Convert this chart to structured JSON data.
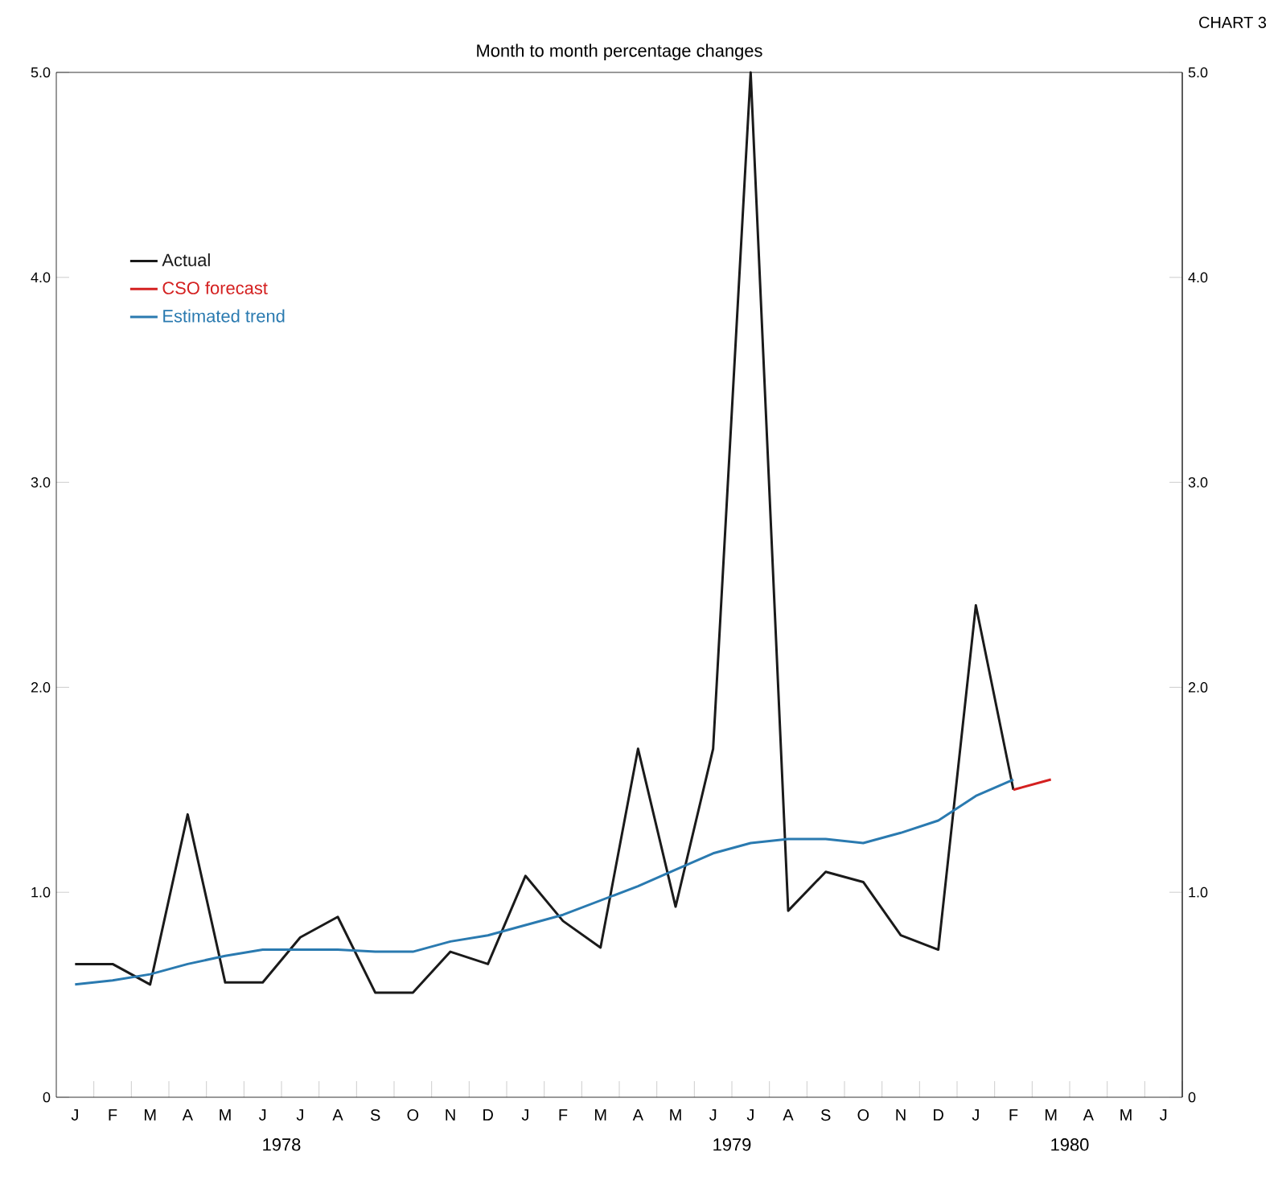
{
  "chart_data": {
    "type": "line",
    "title": "Month to month percentage changes",
    "categories": [
      "J",
      "F",
      "M",
      "A",
      "M",
      "J",
      "J",
      "A",
      "S",
      "O",
      "N",
      "D",
      "J",
      "F",
      "M",
      "A",
      "M",
      "J",
      "J",
      "A",
      "S",
      "O",
      "N",
      "D",
      "J",
      "F",
      "M",
      "A",
      "M",
      "J"
    ],
    "series": [
      {
        "name": "Actual",
        "color": "#1a1a1a",
        "values": [
          0.65,
          0.65,
          0.55,
          1.38,
          0.56,
          0.56,
          0.78,
          0.88,
          0.51,
          0.51,
          0.71,
          0.65,
          1.08,
          0.86,
          0.73,
          1.7,
          0.93,
          1.7,
          5.0,
          0.91,
          1.1,
          1.05,
          0.79,
          0.72,
          2.4,
          1.5,
          null,
          null,
          null,
          null
        ]
      },
      {
        "name": "CSO forecast",
        "color": "#d42020",
        "values": [
          null,
          null,
          null,
          null,
          null,
          null,
          null,
          null,
          null,
          null,
          null,
          null,
          null,
          null,
          null,
          null,
          null,
          null,
          null,
          null,
          null,
          null,
          null,
          null,
          null,
          1.5,
          1.55,
          null,
          null,
          null
        ]
      },
      {
        "name": "Estimated trend",
        "color": "#2a7ab0",
        "values": [
          0.55,
          0.57,
          0.6,
          0.65,
          0.69,
          0.72,
          0.72,
          0.72,
          0.71,
          0.71,
          0.76,
          0.79,
          0.84,
          0.89,
          0.96,
          1.03,
          1.11,
          1.19,
          1.24,
          1.26,
          1.26,
          1.24,
          1.29,
          1.35,
          1.47,
          1.55,
          null,
          null,
          null,
          null
        ]
      }
    ],
    "ylim": [
      0,
      5
    ],
    "yticks": [
      0,
      {
        "value": 1,
        "label": "1.0"
      },
      {
        "value": 2,
        "label": "2.0"
      },
      {
        "value": 3,
        "label": "3.0"
      },
      {
        "value": 4,
        "label": "4.0"
      },
      {
        "value": 5,
        "label": "5.0"
      }
    ],
    "y2lim": [
      0,
      5
    ],
    "y2ticks": [
      0,
      {
        "value": 1,
        "label": "1.0"
      },
      {
        "value": 2,
        "label": "2.0"
      },
      {
        "value": 3,
        "label": "3.0"
      },
      {
        "value": 4,
        "label": "4.0"
      },
      {
        "value": 5,
        "label": "5.0"
      }
    ],
    "legend": "top left",
    "annotations": [
      "1978",
      "1979",
      "1980",
      "CHART 3"
    ]
  }
}
